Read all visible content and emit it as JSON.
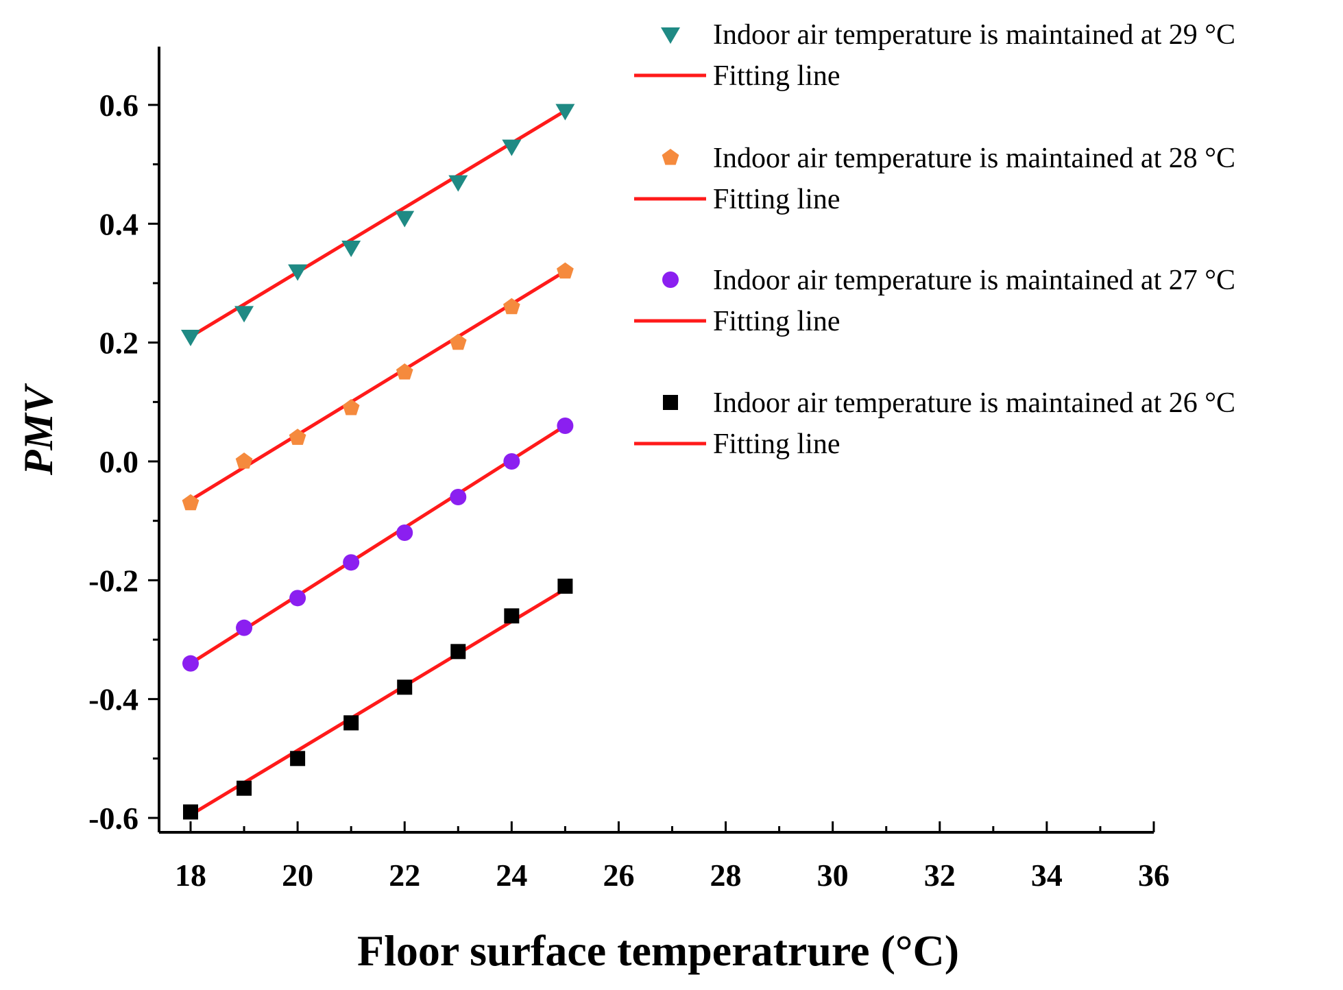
{
  "chart_data": {
    "type": "scatter",
    "title": "",
    "xlabel": "Floor surface temperatrure (°C)",
    "ylabel": "PMV",
    "xlim": [
      17.5,
      36
    ],
    "ylim": [
      -0.62,
      0.7
    ],
    "xticks": [
      18,
      20,
      22,
      24,
      26,
      28,
      30,
      32,
      34,
      36
    ],
    "xtick_labels": [
      "18",
      "20",
      "22",
      "24",
      "26",
      "28",
      "30",
      "32",
      "34",
      "36"
    ],
    "yticks": [
      -0.6,
      -0.4,
      -0.2,
      0.0,
      0.2,
      0.4,
      0.6
    ],
    "ytick_labels": [
      "-0.6",
      "-0.4",
      "-0.2",
      "0.0",
      "0.2",
      "0.4",
      "0.6"
    ],
    "grid": false,
    "legend_position": "top-right",
    "x": [
      18,
      19,
      20,
      21,
      22,
      23,
      24,
      25
    ],
    "series": [
      {
        "name": "Indoor air temperature is maintained at 29 °C",
        "marker": "triangle-down",
        "color": "#1f8a84",
        "values": [
          0.21,
          0.25,
          0.32,
          0.36,
          0.41,
          0.47,
          0.53,
          0.59
        ],
        "fit_line": {
          "name": "Fitting line",
          "color": "#ff1a1a",
          "y_start": 0.21,
          "y_end": 0.59
        }
      },
      {
        "name": "Indoor air temperature is maintained at 28 °C",
        "marker": "pentagon",
        "color": "#f58a3d",
        "values": [
          -0.07,
          0.0,
          0.04,
          0.09,
          0.15,
          0.2,
          0.26,
          0.32
        ],
        "fit_line": {
          "name": "Fitting line",
          "color": "#ff1a1a",
          "y_start": -0.065,
          "y_end": 0.32
        }
      },
      {
        "name": "Indoor air temperature is maintained at 27 °C",
        "marker": "circle",
        "color": "#8b1ff0",
        "values": [
          -0.34,
          -0.28,
          -0.23,
          -0.17,
          -0.12,
          -0.06,
          0.0,
          0.06
        ],
        "fit_line": {
          "name": "Fitting line",
          "color": "#ff1a1a",
          "y_start": -0.34,
          "y_end": 0.06
        }
      },
      {
        "name": "Indoor air temperature is maintained at 26 °C",
        "marker": "square",
        "color": "#000000",
        "values": [
          -0.59,
          -0.55,
          -0.5,
          -0.44,
          -0.38,
          -0.32,
          -0.26,
          -0.21
        ],
        "fit_line": {
          "name": "Fitting line",
          "color": "#ff1a1a",
          "y_start": -0.595,
          "y_end": -0.215
        }
      }
    ]
  }
}
